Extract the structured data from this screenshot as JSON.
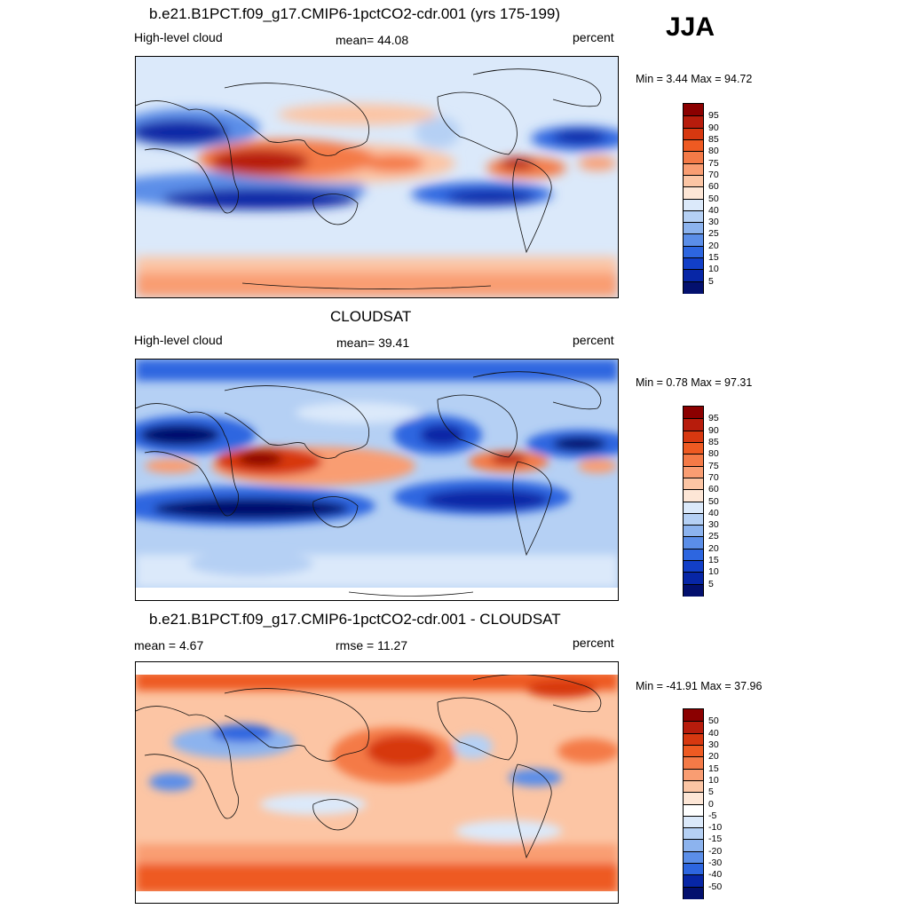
{
  "season": "JJA",
  "chart_data": [
    {
      "type": "heatmap",
      "title": "b.e21.B1PCT.f09_g17.CMIP6-1pctCO2-cdr.001 (yrs 175-199)",
      "left_label": "High-level cloud",
      "center_label": "mean=  44.08",
      "right_label": "percent",
      "min_max": "Min =   3.44 Max =  94.72",
      "colorbar_levels": [
        "95",
        "90",
        "85",
        "80",
        "75",
        "70",
        "60",
        "50",
        "40",
        "30",
        "25",
        "20",
        "15",
        "10",
        "5"
      ],
      "colorbar_colors": [
        "#8b0000",
        "#b71c0c",
        "#d73810",
        "#ee5a22",
        "#f47a47",
        "#f99d72",
        "#fcc5a4",
        "#fde6d6",
        "#dbe9fa",
        "#b5d0f4",
        "#8cb3ee",
        "#5b8ee8",
        "#2d66e0",
        "#123fc8",
        "#0726a6",
        "#03106e"
      ]
    },
    {
      "type": "heatmap",
      "title": "CLOUDSAT",
      "left_label": "High-level cloud",
      "center_label": "mean=  39.41",
      "right_label": "percent",
      "min_max": "Min =   0.78 Max =  97.31",
      "colorbar_levels": [
        "95",
        "90",
        "85",
        "80",
        "75",
        "70",
        "60",
        "50",
        "40",
        "30",
        "25",
        "20",
        "15",
        "10",
        "5"
      ],
      "colorbar_colors": [
        "#8b0000",
        "#b71c0c",
        "#d73810",
        "#ee5a22",
        "#f47a47",
        "#f99d72",
        "#fcc5a4",
        "#fde6d6",
        "#dbe9fa",
        "#b5d0f4",
        "#8cb3ee",
        "#5b8ee8",
        "#2d66e0",
        "#123fc8",
        "#0726a6",
        "#03106e"
      ]
    },
    {
      "type": "heatmap",
      "title": "b.e21.B1PCT.f09_g17.CMIP6-1pctCO2-cdr.001 - CLOUDSAT",
      "left_label": "mean =   4.67",
      "center_label": "rmse =  11.27",
      "right_label": "percent",
      "min_max": "Min = -41.91 Max =  37.96",
      "colorbar_levels": [
        "50",
        "40",
        "30",
        "20",
        "15",
        "10",
        "5",
        "0",
        "-5",
        "-10",
        "-15",
        "-20",
        "-30",
        "-40",
        "-50"
      ],
      "colorbar_colors": [
        "#8b0000",
        "#b71c0c",
        "#d73810",
        "#ee5a22",
        "#f47a47",
        "#f99d72",
        "#fcc5a4",
        "#fde6d6",
        "#ffffff",
        "#dbe9fa",
        "#b5d0f4",
        "#8cb3ee",
        "#5b8ee8",
        "#2d66e0",
        "#0726a6",
        "#03106e"
      ]
    }
  ]
}
